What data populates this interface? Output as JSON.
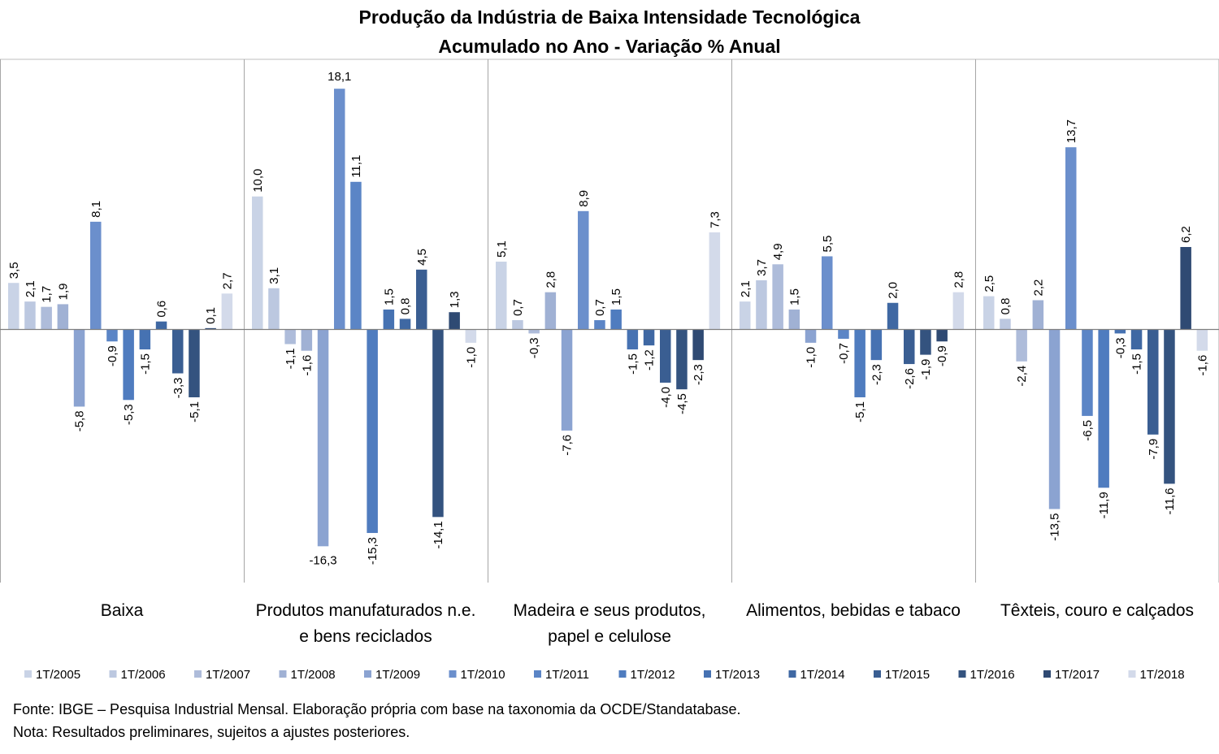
{
  "chart_data": {
    "type": "bar",
    "title": "Produção da Indústria de Baixa Intensidade Tecnológica",
    "subtitle": "Acumulado no Ano - Variação % Anual",
    "categories": [
      "Baixa",
      "Produtos manufaturados n.e. e bens reciclados",
      "Madeira e seus produtos, papel e celulose",
      "Alimentos, bebidas e tabaco",
      "Têxteis, couro e calçados"
    ],
    "category_lines": [
      [
        "Baixa"
      ],
      [
        "Produtos manufaturados n.e.",
        "e bens reciclados"
      ],
      [
        "Madeira e seus produtos,",
        "papel e celulose"
      ],
      [
        "Alimentos, bebidas e tabaco"
      ],
      [
        "Têxteis, couro e calçados"
      ]
    ],
    "series": [
      {
        "name": "1T/2005",
        "color": "#c9d3e6",
        "values": [
          3.5,
          10.0,
          5.1,
          2.1,
          2.5
        ]
      },
      {
        "name": "1T/2006",
        "color": "#bcc8e0",
        "values": [
          2.1,
          3.1,
          0.7,
          3.7,
          0.8
        ]
      },
      {
        "name": "1T/2007",
        "color": "#aebcda",
        "values": [
          1.7,
          -1.1,
          -0.3,
          4.9,
          -2.4
        ]
      },
      {
        "name": "1T/2008",
        "color": "#a0b1d4",
        "values": [
          1.9,
          -1.6,
          2.8,
          1.5,
          2.2
        ]
      },
      {
        "name": "1T/2009",
        "color": "#8ba3d1",
        "values": [
          -5.8,
          -16.3,
          -7.6,
          -1.0,
          -13.5
        ]
      },
      {
        "name": "1T/2010",
        "color": "#6b8fcc",
        "values": [
          8.1,
          18.1,
          8.9,
          5.5,
          13.7
        ]
      },
      {
        "name": "1T/2011",
        "color": "#5b85c6",
        "values": [
          -0.9,
          11.1,
          0.7,
          -0.7,
          -6.5
        ]
      },
      {
        "name": "1T/2012",
        "color": "#4f7cbf",
        "values": [
          -5.3,
          -15.3,
          1.5,
          -5.1,
          -11.9
        ]
      },
      {
        "name": "1T/2013",
        "color": "#4672b2",
        "values": [
          -1.5,
          1.5,
          -1.5,
          -2.3,
          -0.3
        ]
      },
      {
        "name": "1T/2014",
        "color": "#3f68a3",
        "values": [
          0.6,
          0.8,
          -1.2,
          2.0,
          -1.5
        ]
      },
      {
        "name": "1T/2015",
        "color": "#3a5e92",
        "values": [
          -3.3,
          4.5,
          -4.0,
          -2.6,
          -7.9
        ]
      },
      {
        "name": "1T/2016",
        "color": "#34537f",
        "values": [
          -5.1,
          -14.1,
          -4.5,
          -1.9,
          -11.6
        ]
      },
      {
        "name": "1T/2017",
        "color": "#2f4a73",
        "values": [
          0.1,
          1.3,
          -2.3,
          -0.9,
          6.2
        ]
      },
      {
        "name": "1T/2018",
        "color": "#d3daea",
        "values": [
          2.7,
          -1.0,
          7.3,
          2.8,
          -1.6
        ]
      }
    ],
    "ylim": [
      -18.3,
      19.5
    ],
    "grid": false,
    "legend_position": "bottom"
  },
  "footnotes": {
    "source": "Fonte: IBGE – Pesquisa Industrial Mensal. Elaboração própria com base na taxonomia da OCDE/Standatabase.",
    "note": "Nota: Resultados preliminares, sujeitos a ajustes posteriores."
  }
}
